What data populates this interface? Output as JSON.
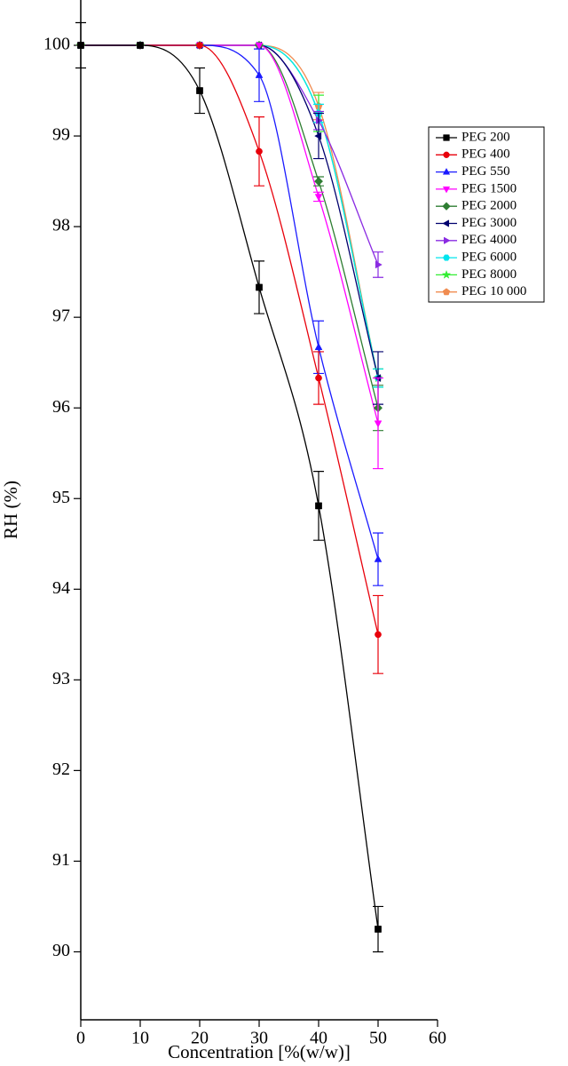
{
  "chart_data": {
    "type": "line",
    "xlabel": "Concentration [%(w/w)]",
    "ylabel": "RH (%)",
    "x": [
      0,
      10,
      20,
      30,
      40,
      50
    ],
    "xlim": [
      0,
      60
    ],
    "xticks": [
      0,
      10,
      20,
      30,
      40,
      50,
      60
    ],
    "ylim": [
      89.25,
      100.5
    ],
    "yticks": [
      90,
      91,
      92,
      93,
      94,
      95,
      96,
      97,
      98,
      99,
      100
    ],
    "legend": "upper-right",
    "series": [
      {
        "name": "PEG 200",
        "color": "#000000",
        "marker": "square",
        "values": [
          100,
          100,
          99.5,
          97.33,
          94.92,
          90.25
        ],
        "errors": [
          0.25,
          0,
          0.25,
          0.29,
          0.38,
          0.25
        ]
      },
      {
        "name": "PEG 400",
        "color": "#e8000b",
        "marker": "circle",
        "values": [
          100,
          100,
          100,
          98.83,
          96.33,
          93.5
        ],
        "errors": [
          0,
          0,
          0,
          0.38,
          0.29,
          0.43
        ]
      },
      {
        "name": "PEG 550",
        "color": "#1a1aff",
        "marker": "triangle-up",
        "values": [
          100,
          100,
          100,
          99.67,
          96.67,
          94.33
        ],
        "errors": [
          0,
          0,
          0,
          0.29,
          0.29,
          0.29
        ]
      },
      {
        "name": "PEG 1500",
        "color": "#ff00ff",
        "marker": "triangle-down",
        "values": [
          100,
          100,
          100,
          100,
          98.33,
          95.83
        ],
        "errors": [
          0,
          0,
          0,
          0,
          0.05,
          0.5
        ]
      },
      {
        "name": "PEG 2000",
        "color": "#2e7d32",
        "marker": "diamond",
        "values": [
          100,
          100,
          100,
          100,
          98.5,
          96
        ],
        "errors": [
          0,
          0,
          0,
          0,
          0.05,
          0.25
        ]
      },
      {
        "name": "PEG 3000",
        "color": "#00006e",
        "marker": "triangle-left",
        "values": [
          100,
          100,
          100,
          100,
          99,
          96.33
        ],
        "errors": [
          0,
          0,
          0,
          0,
          0.25,
          0.29
        ]
      },
      {
        "name": "PEG 4000",
        "color": "#8a2be2",
        "marker": "triangle-right",
        "values": [
          100,
          100,
          100,
          100,
          99.17,
          97.58
        ],
        "errors": [
          0,
          0,
          0,
          0,
          0.1,
          0.14
        ]
      },
      {
        "name": "PEG 6000",
        "color": "#00e5ee",
        "marker": "hexagon",
        "values": [
          100,
          100,
          100,
          100,
          99.25,
          96.33
        ],
        "errors": [
          0,
          0,
          0,
          0,
          0.1,
          0.1
        ]
      },
      {
        "name": "PEG 8000",
        "color": "#33ee33",
        "marker": "star",
        "values": [
          100,
          100,
          100,
          100,
          99.25,
          96.33
        ],
        "errors": [
          0,
          0,
          0,
          0,
          0.2,
          0.1
        ]
      },
      {
        "name": "PEG 10 000",
        "color": "#f08c50",
        "marker": "pentagon",
        "values": [
          100,
          100,
          100,
          100,
          99.33,
          96.33
        ],
        "errors": [
          0,
          0,
          0,
          0,
          0.15,
          0.1
        ]
      }
    ]
  }
}
